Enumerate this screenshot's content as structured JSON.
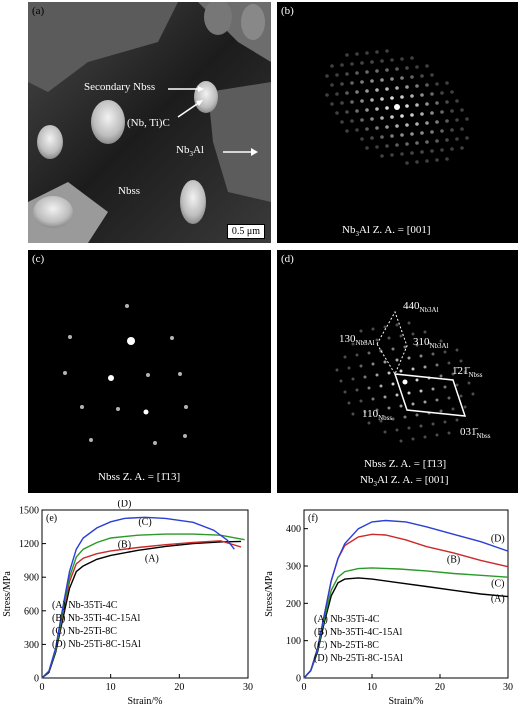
{
  "panels": {
    "a": {
      "label": "(a)",
      "annotations": {
        "secondary": "Secondary Nbss",
        "carbide": "(Nb, Ti)C",
        "nb3al_prefix": "Nb",
        "nb3al_sub": "3",
        "nb3al_suffix": "Al",
        "nbss": "Nbss"
      },
      "scale_bar": "0.5 μm"
    },
    "b": {
      "label": "(b)",
      "caption_prefix": "Nb",
      "caption_sub": "3",
      "caption_suffix": "Al Z. A. = [001]"
    },
    "c": {
      "label": "(c)",
      "caption": "Nbss Z. A. = [1̄13]"
    },
    "d": {
      "label": "(d)",
      "spots": {
        "s440": "440",
        "s440_sub": "Nb3Al",
        "s130": "130",
        "s130_sub": "Nb3Al",
        "s310": "310",
        "s310_sub": "Nb3Al",
        "s121": "1̄21̄",
        "s121_sub": "Nbss",
        "s110": "110",
        "s110_sub": "Nbss",
        "s031": "031̄",
        "s031_sub": "Nbss"
      },
      "caption_line1": "Nbss Z. A. = [1̄13]",
      "caption_line2_prefix": "Nb",
      "caption_line2_sub": "3",
      "caption_line2_suffix": "Al Z. A. = [001]"
    }
  },
  "chart_data": [
    {
      "panel_label": "(e)",
      "type": "line",
      "xlabel": "Strain/%",
      "ylabel": "Stress/MPa",
      "xlim": [
        0,
        30
      ],
      "ylim": [
        0,
        1500
      ],
      "xticks": [
        0,
        10,
        20,
        30
      ],
      "yticks": [
        0,
        300,
        600,
        900,
        1200,
        1500
      ],
      "legend": [
        "(A) Nb-35Ti-4C",
        "(B) Nb-35Ti-4C-15Al",
        "(C) Nb-25Ti-8C",
        "(D) Nb-25Ti-8C-15Al"
      ],
      "series": [
        {
          "name": "(A)",
          "color": "#000000",
          "points": [
            [
              0,
              0
            ],
            [
              1,
              50
            ],
            [
              2,
              230
            ],
            [
              3,
              520
            ],
            [
              4,
              800
            ],
            [
              5,
              950
            ],
            [
              6,
              1000
            ],
            [
              8,
              1060
            ],
            [
              10,
              1095
            ],
            [
              14,
              1140
            ],
            [
              18,
              1175
            ],
            [
              22,
              1200
            ],
            [
              26,
              1215
            ],
            [
              29,
              1220
            ]
          ]
        },
        {
          "name": "(B)",
          "color": "#cc2a2a",
          "points": [
            [
              0,
              0
            ],
            [
              1,
              60
            ],
            [
              2,
              250
            ],
            [
              3,
              560
            ],
            [
              4,
              860
            ],
            [
              5,
              1020
            ],
            [
              6,
              1070
            ],
            [
              8,
              1110
            ],
            [
              10,
              1135
            ],
            [
              14,
              1165
            ],
            [
              18,
              1190
            ],
            [
              22,
              1210
            ],
            [
              26,
              1225
            ],
            [
              29,
              1170
            ]
          ]
        },
        {
          "name": "(C)",
          "color": "#2a9a2a",
          "points": [
            [
              0,
              0
            ],
            [
              1,
              60
            ],
            [
              2,
              250
            ],
            [
              3,
              580
            ],
            [
              4,
              900
            ],
            [
              5,
              1080
            ],
            [
              6,
              1150
            ],
            [
              8,
              1210
            ],
            [
              10,
              1250
            ],
            [
              14,
              1275
            ],
            [
              18,
              1285
            ],
            [
              22,
              1285
            ],
            [
              26,
              1275
            ],
            [
              29.5,
              1235
            ]
          ]
        },
        {
          "name": "(D)",
          "color": "#2a3fd6",
          "points": [
            [
              0,
              0
            ],
            [
              1,
              60
            ],
            [
              2,
              270
            ],
            [
              3,
              620
            ],
            [
              4,
              950
            ],
            [
              5,
              1150
            ],
            [
              6,
              1250
            ],
            [
              8,
              1340
            ],
            [
              10,
              1395
            ],
            [
              12,
              1425
            ],
            [
              15,
              1435
            ],
            [
              18,
              1425
            ],
            [
              22,
              1390
            ],
            [
              25,
              1320
            ],
            [
              27,
              1230
            ],
            [
              28,
              1150
            ]
          ]
        }
      ],
      "curve_labels": [
        {
          "text": "(D)",
          "x": 12,
          "y": 1530
        },
        {
          "text": "(C)",
          "x": 15,
          "y": 1365
        },
        {
          "text": "(B)",
          "x": 12,
          "y": 1165
        },
        {
          "text": "(A)",
          "x": 16,
          "y": 1040
        }
      ]
    },
    {
      "panel_label": "(f)",
      "type": "line",
      "xlabel": "Strain/%",
      "ylabel": "Stress/MPa",
      "xlim": [
        0,
        30
      ],
      "ylim": [
        0,
        450
      ],
      "xticks": [
        0,
        10,
        20,
        30
      ],
      "yticks": [
        0,
        100,
        200,
        300,
        400
      ],
      "legend": [
        "(A) Nb-35Ti-4C",
        "(B) Nb-35Ti-4C-15Al",
        "(C) Nb-25Ti-8C",
        "(D) Nb-25Ti-8C-15Al"
      ],
      "series": [
        {
          "name": "(A)",
          "color": "#000000",
          "points": [
            [
              0,
              0
            ],
            [
              1,
              20
            ],
            [
              2,
              70
            ],
            [
              3,
              150
            ],
            [
              4,
              220
            ],
            [
              5,
              255
            ],
            [
              6,
              265
            ],
            [
              8,
              268
            ],
            [
              10,
              265
            ],
            [
              14,
              255
            ],
            [
              18,
              245
            ],
            [
              22,
              235
            ],
            [
              26,
              225
            ],
            [
              30,
              218
            ]
          ]
        },
        {
          "name": "(B)",
          "color": "#cc2a2a",
          "points": [
            [
              0,
              0
            ],
            [
              1,
              20
            ],
            [
              2,
              80
            ],
            [
              3,
              170
            ],
            [
              4,
              260
            ],
            [
              5,
              320
            ],
            [
              6,
              355
            ],
            [
              8,
              378
            ],
            [
              10,
              385
            ],
            [
              12,
              383
            ],
            [
              15,
              370
            ],
            [
              18,
              352
            ],
            [
              22,
              335
            ],
            [
              26,
              315
            ],
            [
              30,
              298
            ]
          ]
        },
        {
          "name": "(C)",
          "color": "#2a9a2a",
          "points": [
            [
              0,
              0
            ],
            [
              1,
              20
            ],
            [
              2,
              75
            ],
            [
              3,
              160
            ],
            [
              4,
              235
            ],
            [
              5,
              270
            ],
            [
              6,
              285
            ],
            [
              8,
              293
            ],
            [
              10,
              295
            ],
            [
              14,
              292
            ],
            [
              18,
              287
            ],
            [
              22,
              280
            ],
            [
              26,
              275
            ],
            [
              30,
              270
            ]
          ]
        },
        {
          "name": "(D)",
          "color": "#2a3fd6",
          "points": [
            [
              0,
              0
            ],
            [
              1,
              20
            ],
            [
              2,
              80
            ],
            [
              3,
              170
            ],
            [
              4,
              260
            ],
            [
              5,
              320
            ],
            [
              6,
              360
            ],
            [
              8,
              400
            ],
            [
              10,
              418
            ],
            [
              12,
              422
            ],
            [
              15,
              418
            ],
            [
              18,
              405
            ],
            [
              22,
              385
            ],
            [
              26,
              365
            ],
            [
              30,
              340
            ]
          ]
        }
      ],
      "curve_labels": [
        {
          "text": "(D)",
          "x": 28.5,
          "y": 365
        },
        {
          "text": "(B)",
          "x": 22,
          "y": 310
        },
        {
          "text": "(C)",
          "x": 28.5,
          "y": 245
        },
        {
          "text": "(A)",
          "x": 28.5,
          "y": 205
        }
      ]
    }
  ]
}
